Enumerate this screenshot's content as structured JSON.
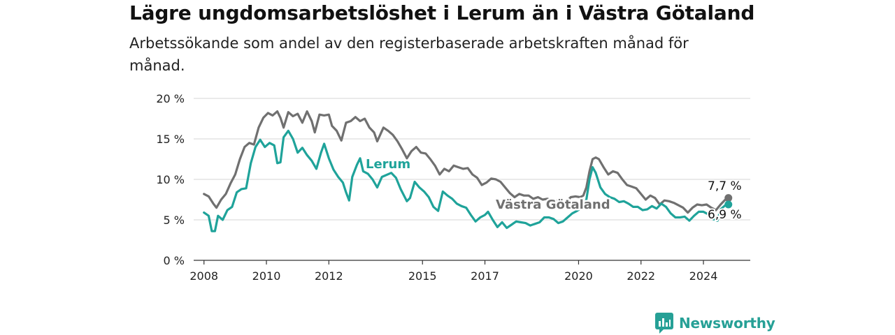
{
  "title": "Lägre ungdomsarbetslöshet i Lerum än i Västra Götaland",
  "subtitle": "Arbetssökande som andel av den registerbaserade arbetskraften månad för månad.",
  "brand": {
    "name": "Newsworthy",
    "color": "#26a096",
    "icon": "newsworthy-chart-bubble-icon"
  },
  "chart_data": {
    "type": "line",
    "title": "Lägre ungdomsarbetslöshet i Lerum än i Västra Götaland",
    "subtitle": "Arbetssökande som andel av den registerbaserade arbetskraften månad för månad.",
    "ylim": [
      0,
      20
    ],
    "y_ticks": [
      0,
      5,
      10,
      15,
      20
    ],
    "y_tick_labels": [
      "0 %",
      "5 %",
      "10 %",
      "15 %",
      "20 %"
    ],
    "x_ticks": [
      2008,
      2010,
      2012,
      2015,
      2017,
      2020,
      2022,
      2024
    ],
    "x_tick_labels": [
      "2008",
      "2010",
      "2012",
      "2015",
      "2017",
      "2020",
      "2022",
      "2024"
    ],
    "xlim": [
      2007.67,
      2025.5
    ],
    "grid": "horizontal",
    "series": [
      {
        "name": "Västra Götaland",
        "color": "#707070",
        "last_value_label": "7,7 %",
        "points": [
          [
            2008.0,
            8.2
          ],
          [
            2008.15,
            7.9
          ],
          [
            2008.3,
            7.0
          ],
          [
            2008.4,
            6.5
          ],
          [
            2008.55,
            7.5
          ],
          [
            2008.7,
            8.2
          ],
          [
            2008.85,
            9.5
          ],
          [
            2009.0,
            10.6
          ],
          [
            2009.15,
            12.5
          ],
          [
            2009.3,
            14.0
          ],
          [
            2009.45,
            14.5
          ],
          [
            2009.6,
            14.3
          ],
          [
            2009.75,
            16.4
          ],
          [
            2009.9,
            17.6
          ],
          [
            2010.05,
            18.2
          ],
          [
            2010.2,
            17.9
          ],
          [
            2010.35,
            18.4
          ],
          [
            2010.45,
            17.6
          ],
          [
            2010.55,
            16.4
          ],
          [
            2010.7,
            18.3
          ],
          [
            2010.85,
            17.8
          ],
          [
            2011.0,
            18.1
          ],
          [
            2011.15,
            17.0
          ],
          [
            2011.3,
            18.4
          ],
          [
            2011.45,
            17.2
          ],
          [
            2011.55,
            15.8
          ],
          [
            2011.7,
            18.0
          ],
          [
            2011.85,
            17.9
          ],
          [
            2012.0,
            18.0
          ],
          [
            2012.1,
            16.6
          ],
          [
            2012.25,
            16.0
          ],
          [
            2012.4,
            14.8
          ],
          [
            2012.55,
            17.0
          ],
          [
            2012.7,
            17.2
          ],
          [
            2012.85,
            17.7
          ],
          [
            2013.0,
            17.2
          ],
          [
            2013.15,
            17.5
          ],
          [
            2013.3,
            16.4
          ],
          [
            2013.45,
            15.8
          ],
          [
            2013.55,
            14.7
          ],
          [
            2013.75,
            16.4
          ],
          [
            2013.9,
            16.0
          ],
          [
            2014.05,
            15.5
          ],
          [
            2014.2,
            14.7
          ],
          [
            2014.35,
            13.7
          ],
          [
            2014.5,
            12.6
          ],
          [
            2014.65,
            13.5
          ],
          [
            2014.8,
            14.0
          ],
          [
            2014.95,
            13.3
          ],
          [
            2015.1,
            13.2
          ],
          [
            2015.25,
            12.5
          ],
          [
            2015.4,
            11.7
          ],
          [
            2015.55,
            10.6
          ],
          [
            2015.7,
            11.3
          ],
          [
            2015.85,
            11.0
          ],
          [
            2016.0,
            11.7
          ],
          [
            2016.15,
            11.5
          ],
          [
            2016.3,
            11.3
          ],
          [
            2016.45,
            11.4
          ],
          [
            2016.6,
            10.6
          ],
          [
            2016.75,
            10.2
          ],
          [
            2016.9,
            9.3
          ],
          [
            2017.05,
            9.6
          ],
          [
            2017.2,
            10.1
          ],
          [
            2017.35,
            10.0
          ],
          [
            2017.5,
            9.7
          ],
          [
            2017.65,
            9.0
          ],
          [
            2017.8,
            8.3
          ],
          [
            2017.95,
            7.8
          ],
          [
            2018.1,
            8.2
          ],
          [
            2018.25,
            8.0
          ],
          [
            2018.4,
            8.0
          ],
          [
            2018.55,
            7.6
          ],
          [
            2018.7,
            7.8
          ],
          [
            2018.85,
            7.5
          ],
          [
            2019.0,
            7.6
          ],
          [
            2019.15,
            7.4
          ],
          [
            2019.3,
            7.4
          ],
          [
            2019.45,
            7.1
          ],
          [
            2019.6,
            7.2
          ],
          [
            2019.75,
            7.8
          ],
          [
            2019.9,
            7.9
          ],
          [
            2020.05,
            7.8
          ],
          [
            2020.15,
            8.0
          ],
          [
            2020.25,
            9.0
          ],
          [
            2020.35,
            11.0
          ],
          [
            2020.45,
            12.5
          ],
          [
            2020.55,
            12.7
          ],
          [
            2020.65,
            12.5
          ],
          [
            2020.8,
            11.5
          ],
          [
            2020.95,
            10.6
          ],
          [
            2021.1,
            11.0
          ],
          [
            2021.25,
            10.8
          ],
          [
            2021.4,
            10.0
          ],
          [
            2021.55,
            9.3
          ],
          [
            2021.7,
            9.1
          ],
          [
            2021.85,
            8.9
          ],
          [
            2022.0,
            8.2
          ],
          [
            2022.15,
            7.5
          ],
          [
            2022.3,
            8.0
          ],
          [
            2022.45,
            7.7
          ],
          [
            2022.6,
            6.9
          ],
          [
            2022.75,
            7.4
          ],
          [
            2022.9,
            7.3
          ],
          [
            2023.05,
            7.1
          ],
          [
            2023.2,
            6.8
          ],
          [
            2023.35,
            6.5
          ],
          [
            2023.5,
            5.9
          ],
          [
            2023.65,
            6.5
          ],
          [
            2023.8,
            6.9
          ],
          [
            2023.95,
            6.8
          ],
          [
            2024.1,
            6.9
          ],
          [
            2024.25,
            6.5
          ],
          [
            2024.4,
            6.2
          ],
          [
            2024.55,
            6.9
          ],
          [
            2024.7,
            7.5
          ],
          [
            2024.8,
            7.7
          ]
        ]
      },
      {
        "name": "Lerum",
        "color": "#1fa39a",
        "last_value_label": "6,9 %",
        "points": [
          [
            2008.0,
            5.9
          ],
          [
            2008.15,
            5.5
          ],
          [
            2008.25,
            3.6
          ],
          [
            2008.35,
            3.6
          ],
          [
            2008.45,
            5.5
          ],
          [
            2008.6,
            5.0
          ],
          [
            2008.75,
            6.2
          ],
          [
            2008.9,
            6.6
          ],
          [
            2009.05,
            8.4
          ],
          [
            2009.2,
            8.8
          ],
          [
            2009.35,
            8.9
          ],
          [
            2009.5,
            12.0
          ],
          [
            2009.65,
            14.0
          ],
          [
            2009.8,
            14.9
          ],
          [
            2009.95,
            14.0
          ],
          [
            2010.1,
            14.5
          ],
          [
            2010.25,
            14.2
          ],
          [
            2010.35,
            12.0
          ],
          [
            2010.45,
            12.1
          ],
          [
            2010.55,
            15.2
          ],
          [
            2010.7,
            16.0
          ],
          [
            2010.85,
            15.0
          ],
          [
            2011.0,
            13.3
          ],
          [
            2011.15,
            13.9
          ],
          [
            2011.3,
            13.0
          ],
          [
            2011.45,
            12.3
          ],
          [
            2011.6,
            11.3
          ],
          [
            2011.75,
            13.3
          ],
          [
            2011.85,
            14.4
          ],
          [
            2012.0,
            12.6
          ],
          [
            2012.15,
            11.2
          ],
          [
            2012.3,
            10.3
          ],
          [
            2012.45,
            9.6
          ],
          [
            2012.55,
            8.4
          ],
          [
            2012.65,
            7.4
          ],
          [
            2012.75,
            10.3
          ],
          [
            2012.9,
            11.8
          ],
          [
            2013.0,
            12.6
          ],
          [
            2013.1,
            11.0
          ],
          [
            2013.25,
            10.7
          ],
          [
            2013.4,
            10.0
          ],
          [
            2013.55,
            9.0
          ],
          [
            2013.7,
            10.3
          ],
          [
            2014.0,
            10.8
          ],
          [
            2014.15,
            10.2
          ],
          [
            2014.3,
            8.8
          ],
          [
            2014.5,
            7.3
          ],
          [
            2014.6,
            7.7
          ],
          [
            2014.75,
            9.7
          ],
          [
            2014.9,
            9.0
          ],
          [
            2015.05,
            8.5
          ],
          [
            2015.2,
            7.8
          ],
          [
            2015.35,
            6.6
          ],
          [
            2015.5,
            6.1
          ],
          [
            2015.65,
            8.5
          ],
          [
            2015.8,
            8.0
          ],
          [
            2015.95,
            7.6
          ],
          [
            2016.1,
            7.0
          ],
          [
            2016.25,
            6.7
          ],
          [
            2016.4,
            6.5
          ],
          [
            2016.55,
            5.6
          ],
          [
            2016.7,
            4.8
          ],
          [
            2016.85,
            5.3
          ],
          [
            2017.0,
            5.6
          ],
          [
            2017.1,
            6.0
          ],
          [
            2017.25,
            5.0
          ],
          [
            2017.4,
            4.1
          ],
          [
            2017.55,
            4.7
          ],
          [
            2017.7,
            4.0
          ],
          [
            2017.85,
            4.4
          ],
          [
            2018.0,
            4.8
          ],
          [
            2018.15,
            4.7
          ],
          [
            2018.3,
            4.6
          ],
          [
            2018.45,
            4.3
          ],
          [
            2018.6,
            4.5
          ],
          [
            2018.75,
            4.7
          ],
          [
            2018.9,
            5.3
          ],
          [
            2019.05,
            5.3
          ],
          [
            2019.2,
            5.1
          ],
          [
            2019.35,
            4.6
          ],
          [
            2019.5,
            4.8
          ],
          [
            2019.65,
            5.3
          ],
          [
            2019.8,
            5.8
          ],
          [
            2019.95,
            6.1
          ],
          [
            2020.1,
            6.5
          ],
          [
            2020.25,
            7.5
          ],
          [
            2020.35,
            10.0
          ],
          [
            2020.45,
            11.5
          ],
          [
            2020.55,
            10.8
          ],
          [
            2020.7,
            9.0
          ],
          [
            2020.85,
            8.2
          ],
          [
            2021.0,
            7.8
          ],
          [
            2021.15,
            7.6
          ],
          [
            2021.3,
            7.2
          ],
          [
            2021.45,
            7.3
          ],
          [
            2021.6,
            7.0
          ],
          [
            2021.75,
            6.6
          ],
          [
            2021.9,
            6.6
          ],
          [
            2022.05,
            6.2
          ],
          [
            2022.2,
            6.3
          ],
          [
            2022.35,
            6.7
          ],
          [
            2022.5,
            6.4
          ],
          [
            2022.65,
            7.0
          ],
          [
            2022.8,
            6.6
          ],
          [
            2022.95,
            5.8
          ],
          [
            2023.1,
            5.3
          ],
          [
            2023.25,
            5.3
          ],
          [
            2023.4,
            5.4
          ],
          [
            2023.55,
            4.9
          ],
          [
            2023.7,
            5.5
          ],
          [
            2023.85,
            6.0
          ],
          [
            2024.0,
            6.0
          ],
          [
            2024.15,
            5.7
          ],
          [
            2024.3,
            5.1
          ],
          [
            2024.45,
            4.9
          ],
          [
            2024.55,
            6.3
          ],
          [
            2024.7,
            6.8
          ],
          [
            2024.8,
            6.9
          ]
        ]
      }
    ],
    "annotations": [
      {
        "text": "Lerum",
        "series": "Lerum"
      },
      {
        "text": "Västra Götaland",
        "series": "Västra Götaland"
      }
    ]
  }
}
